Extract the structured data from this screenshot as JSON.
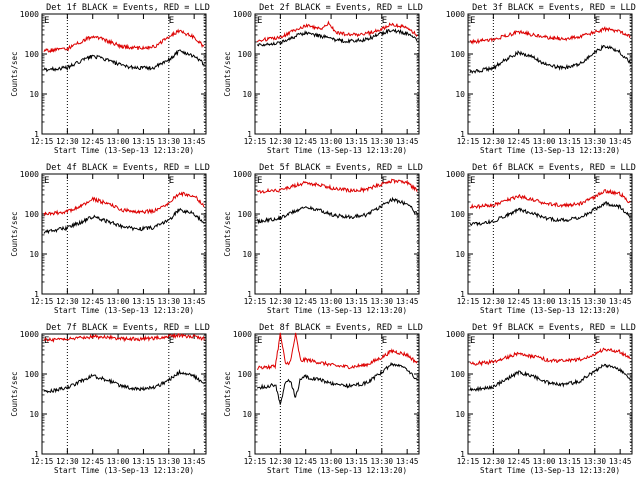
{
  "chart_data": [
    {
      "type": "line",
      "title": "Det 1f BLACK = Events, RED = LLD",
      "ylabel": "Counts/sec",
      "xlabel": "Start Time (13-Sep-13 12:13:20)",
      "x_ticks": [
        "12:15",
        "12:30",
        "12:45",
        "13:00",
        "13:15",
        "13:30",
        "13:45"
      ],
      "y_ticks": [
        "1",
        "10",
        "100",
        "1000"
      ],
      "ylim": [
        1,
        1000
      ],
      "yscale": "log",
      "markers": [
        "E",
        "E"
      ],
      "series": [
        {
          "color": "#000000",
          "x": [
            12.25,
            12.35,
            12.5,
            12.65,
            12.75,
            12.9,
            13.05,
            13.2,
            13.35,
            13.5,
            13.6,
            13.75,
            13.85
          ],
          "values": [
            40,
            42,
            45,
            70,
            90,
            70,
            50,
            45,
            45,
            70,
            120,
            90,
            55
          ]
        },
        {
          "color": "#dd0000",
          "x": [
            12.25,
            12.35,
            12.5,
            12.65,
            12.75,
            12.9,
            13.05,
            13.2,
            13.35,
            13.5,
            13.6,
            13.75,
            13.85
          ],
          "values": [
            120,
            125,
            135,
            210,
            280,
            210,
            150,
            140,
            150,
            260,
            380,
            260,
            150
          ]
        }
      ]
    },
    {
      "type": "line",
      "title": "Det 2f BLACK = Events, RED = LLD",
      "ylabel": "Counts/sec",
      "xlabel": "Start Time (13-Sep-13 12:13:20)",
      "x_ticks": [
        "12:15",
        "12:30",
        "12:45",
        "13:00",
        "13:15",
        "13:30",
        "13:45"
      ],
      "y_ticks": [
        "1",
        "10",
        "100",
        "1000"
      ],
      "ylim": [
        1,
        1000
      ],
      "yscale": "log",
      "markers": [
        "E",
        "E"
      ],
      "series": [
        {
          "color": "#000000",
          "x": [
            12.25,
            12.35,
            12.5,
            12.65,
            12.75,
            12.9,
            13.05,
            13.2,
            13.35,
            13.5,
            13.6,
            13.75,
            13.85
          ],
          "values": [
            170,
            175,
            190,
            280,
            340,
            280,
            220,
            210,
            230,
            330,
            400,
            320,
            220
          ]
        },
        {
          "color": "#dd0000",
          "x": [
            12.25,
            12.35,
            12.5,
            12.65,
            12.75,
            12.9,
            12.98,
            13.05,
            13.2,
            13.35,
            13.5,
            13.6,
            13.75,
            13.85
          ],
          "values": [
            220,
            230,
            260,
            400,
            520,
            430,
            600,
            340,
            300,
            320,
            420,
            560,
            460,
            290
          ]
        }
      ]
    },
    {
      "type": "line",
      "title": "Det 3f BLACK = Events, RED = LLD",
      "ylabel": "",
      "xlabel": "Start Time (13-Sep-13 12:13:20)",
      "x_ticks": [
        "12:15",
        "12:30",
        "12:45",
        "13:00",
        "13:15",
        "13:30",
        "13:45"
      ],
      "y_ticks": [
        "1",
        "10",
        "100",
        "1000"
      ],
      "ylim": [
        1,
        1000
      ],
      "yscale": "log",
      "markers": [
        "E",
        "E"
      ],
      "series": [
        {
          "color": "#000000",
          "x": [
            12.25,
            12.35,
            12.5,
            12.65,
            12.75,
            12.9,
            13.05,
            13.2,
            13.35,
            13.5,
            13.6,
            13.75,
            13.85
          ],
          "values": [
            35,
            38,
            45,
            80,
            110,
            80,
            50,
            45,
            55,
            110,
            160,
            110,
            60
          ]
        },
        {
          "color": "#dd0000",
          "x": [
            12.25,
            12.35,
            12.5,
            12.65,
            12.75,
            12.9,
            13.05,
            13.2,
            13.35,
            13.5,
            13.6,
            13.75,
            13.85
          ],
          "values": [
            200,
            210,
            230,
            300,
            360,
            300,
            250,
            240,
            270,
            350,
            420,
            370,
            280
          ]
        }
      ]
    },
    {
      "type": "line",
      "title": "Det 4f BLACK = Events, RED = LLD",
      "ylabel": "Counts/sec",
      "xlabel": "Start Time (13-Sep-13 12:13:20)",
      "x_ticks": [
        "12:15",
        "12:30",
        "12:45",
        "13:00",
        "13:15",
        "13:30",
        "13:45"
      ],
      "y_ticks": [
        "1",
        "10",
        "100",
        "1000"
      ],
      "ylim": [
        1,
        1000
      ],
      "yscale": "log",
      "markers": [
        "E",
        "E"
      ],
      "series": [
        {
          "color": "#000000",
          "x": [
            12.25,
            12.35,
            12.5,
            12.65,
            12.75,
            12.9,
            13.05,
            13.2,
            13.35,
            13.5,
            13.6,
            13.75,
            13.85
          ],
          "values": [
            35,
            38,
            45,
            65,
            85,
            65,
            48,
            42,
            45,
            70,
            130,
            100,
            60
          ]
        },
        {
          "color": "#dd0000",
          "x": [
            12.25,
            12.35,
            12.5,
            12.65,
            12.75,
            12.9,
            13.05,
            13.2,
            13.35,
            13.5,
            13.6,
            13.75,
            13.85
          ],
          "values": [
            100,
            105,
            115,
            170,
            240,
            180,
            125,
            110,
            120,
            190,
            330,
            280,
            160
          ]
        }
      ]
    },
    {
      "type": "line",
      "title": "Det 5f BLACK = Events, RED = LLD",
      "ylabel": "Counts/sec",
      "xlabel": "Start Time (13-Sep-13 12:13:20)",
      "x_ticks": [
        "12:15",
        "12:30",
        "12:45",
        "13:00",
        "13:15",
        "13:30",
        "13:45"
      ],
      "y_ticks": [
        "1",
        "10",
        "100",
        "1000"
      ],
      "ylim": [
        1,
        1000
      ],
      "yscale": "log",
      "markers": [
        "E",
        "E"
      ],
      "series": [
        {
          "color": "#000000",
          "x": [
            12.25,
            12.35,
            12.5,
            12.65,
            12.75,
            12.9,
            13.05,
            13.2,
            13.35,
            13.5,
            13.6,
            13.75,
            13.85
          ],
          "values": [
            65,
            70,
            80,
            120,
            150,
            120,
            90,
            85,
            95,
            160,
            230,
            180,
            100
          ]
        },
        {
          "color": "#dd0000",
          "x": [
            12.25,
            12.35,
            12.5,
            12.65,
            12.75,
            12.9,
            13.05,
            13.2,
            13.35,
            13.5,
            13.6,
            13.75,
            13.85
          ],
          "values": [
            360,
            370,
            400,
            520,
            600,
            520,
            420,
            390,
            410,
            560,
            680,
            600,
            400
          ]
        }
      ]
    },
    {
      "type": "line",
      "title": "Det 6f BLACK = Events, RED = LLD",
      "ylabel": "",
      "xlabel": "Start Time (13-Sep-13 12:13:20)",
      "x_ticks": [
        "12:15",
        "12:30",
        "12:45",
        "13:00",
        "13:15",
        "13:30",
        "13:45"
      ],
      "y_ticks": [
        "1",
        "10",
        "100",
        "1000"
      ],
      "ylim": [
        1,
        1000
      ],
      "yscale": "log",
      "markers": [
        "E",
        "E"
      ],
      "series": [
        {
          "color": "#000000",
          "x": [
            12.25,
            12.35,
            12.5,
            12.65,
            12.75,
            12.9,
            13.05,
            13.2,
            13.35,
            13.5,
            13.6,
            13.75,
            13.85
          ],
          "values": [
            55,
            58,
            65,
            100,
            130,
            100,
            75,
            70,
            80,
            130,
            190,
            150,
            85
          ]
        },
        {
          "color": "#dd0000",
          "x": [
            12.25,
            12.35,
            12.5,
            12.65,
            12.75,
            12.9,
            13.05,
            13.2,
            13.35,
            13.5,
            13.6,
            13.75,
            13.85
          ],
          "values": [
            150,
            155,
            165,
            230,
            280,
            220,
            175,
            165,
            180,
            270,
            380,
            320,
            190
          ]
        }
      ]
    },
    {
      "type": "line",
      "title": "Det 7f BLACK = Events, RED = LLD",
      "ylabel": "Counts/sec",
      "xlabel": "Start Time (13-Sep-13 12:13:20)",
      "x_ticks": [
        "12:15",
        "12:30",
        "12:45",
        "13:00",
        "13:15",
        "13:30",
        "13:45"
      ],
      "y_ticks": [
        "1",
        "10",
        "100",
        "1000"
      ],
      "ylim": [
        1,
        1000
      ],
      "yscale": "log",
      "markers": [
        "E",
        "E"
      ],
      "series": [
        {
          "color": "#000000",
          "x": [
            12.25,
            12.35,
            12.5,
            12.65,
            12.75,
            12.9,
            13.05,
            13.2,
            13.35,
            13.5,
            13.6,
            13.75,
            13.85
          ],
          "values": [
            35,
            38,
            45,
            70,
            90,
            70,
            48,
            42,
            45,
            70,
            110,
            90,
            55
          ]
        },
        {
          "color": "#dd0000",
          "x": [
            12.25,
            12.35,
            12.5,
            12.65,
            12.75,
            12.9,
            13.05,
            13.2,
            13.35,
            13.5,
            13.6,
            13.75,
            13.85
          ],
          "values": [
            700,
            720,
            760,
            820,
            860,
            820,
            760,
            750,
            780,
            880,
            920,
            860,
            760
          ]
        }
      ]
    },
    {
      "type": "line",
      "title": "Det 8f BLACK = Events, RED = LLD",
      "ylabel": "Counts/sec",
      "xlabel": "Start Time (13-Sep-13 12:13:20)",
      "x_ticks": [
        "12:15",
        "12:30",
        "12:45",
        "13:00",
        "13:15",
        "13:30",
        "13:45"
      ],
      "y_ticks": [
        "1",
        "10",
        "100",
        "1000"
      ],
      "ylim": [
        1,
        1000
      ],
      "yscale": "log",
      "markers": [
        "E",
        "E"
      ],
      "series": [
        {
          "color": "#000000",
          "x": [
            12.25,
            12.35,
            12.45,
            12.5,
            12.55,
            12.6,
            12.65,
            12.7,
            12.75,
            12.9,
            13.05,
            13.2,
            13.35,
            13.5,
            13.6,
            13.75,
            13.85
          ],
          "values": [
            45,
            48,
            55,
            18,
            60,
            70,
            25,
            80,
            85,
            70,
            55,
            50,
            60,
            110,
            180,
            130,
            70
          ]
        },
        {
          "color": "#dd0000",
          "x": [
            12.25,
            12.35,
            12.45,
            12.5,
            12.55,
            12.6,
            12.65,
            12.7,
            12.75,
            12.9,
            13.05,
            13.2,
            13.35,
            13.5,
            13.6,
            13.75,
            13.85
          ],
          "values": [
            140,
            145,
            160,
            1000,
            180,
            200,
            1000,
            210,
            230,
            190,
            160,
            150,
            170,
            260,
            380,
            300,
            190
          ]
        }
      ]
    },
    {
      "type": "line",
      "title": "Det 9f BLACK = Events, RED = LLD",
      "ylabel": "",
      "xlabel": "Start Time (13-Sep-13 12:13:20)",
      "x_ticks": [
        "12:15",
        "12:30",
        "12:45",
        "13:00",
        "13:15",
        "13:30",
        "13:45"
      ],
      "y_ticks": [
        "1",
        "10",
        "100",
        "1000"
      ],
      "ylim": [
        1,
        1000
      ],
      "yscale": "log",
      "markers": [
        "E",
        "E"
      ],
      "series": [
        {
          "color": "#000000",
          "x": [
            12.25,
            12.35,
            12.5,
            12.65,
            12.75,
            12.9,
            13.05,
            13.2,
            13.35,
            13.5,
            13.6,
            13.75,
            13.85
          ],
          "values": [
            40,
            42,
            48,
            80,
            110,
            85,
            60,
            55,
            65,
            120,
            170,
            130,
            70
          ]
        },
        {
          "color": "#dd0000",
          "x": [
            12.25,
            12.35,
            12.5,
            12.65,
            12.75,
            12.9,
            13.05,
            13.2,
            13.35,
            13.5,
            13.6,
            13.75,
            13.85
          ],
          "values": [
            180,
            185,
            200,
            270,
            330,
            270,
            220,
            210,
            230,
            320,
            420,
            360,
            240
          ]
        }
      ]
    }
  ]
}
